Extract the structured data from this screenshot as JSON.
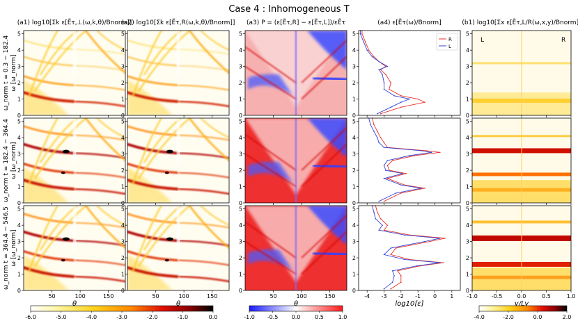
{
  "figure": {
    "title": "Case 4 : Inhomogeneous T",
    "row_labels": [
      "ω_norm t = 0.3 − 182.4",
      "ω_norm t = 182.4 − 364.4",
      "ω_norm t = 364.4 − 546.5"
    ],
    "y_axis_label": "ω [ω_norm]"
  },
  "chart_data": [
    {
      "id": "a1",
      "type": "heatmap",
      "title": "(a1) log10[Σk ε[Ẽτ,⊥(ω,k,θ)/Bnorm]]",
      "xlabel": "θ",
      "ylabel": "ω [ω_norm]",
      "xlim": [
        0,
        180
      ],
      "ylim": [
        0,
        5.2
      ],
      "xticks": [
        50,
        100,
        150
      ],
      "yticks": [
        0,
        1,
        2,
        3,
        4,
        5
      ],
      "colorbar": {
        "range": [
          -6.0,
          0.0
        ],
        "ticks": [
          "-6.0",
          "-5.0",
          "-4.0",
          "-3.0",
          "-2.0",
          "-1.0",
          "0.0"
        ],
        "cmap": "hot_r"
      }
    },
    {
      "id": "a2",
      "type": "heatmap",
      "title": "(a2) log10[Σk ε[Ẽτ,R(ω,k,θ)/Bnorm]]",
      "xlabel": "θ",
      "ylabel": "",
      "xlim": [
        0,
        180
      ],
      "ylim": [
        0,
        5.2
      ],
      "xticks": [
        50,
        100,
        150
      ],
      "yticks": [
        0,
        1,
        2,
        3,
        4,
        5
      ]
    },
    {
      "id": "a3",
      "type": "heatmap",
      "title": "(a3) P = (ε[Ẽτ,R] − ε[Ẽτ,L])/εẼτ",
      "xlabel": "θ",
      "ylabel": "",
      "xlim": [
        0,
        180
      ],
      "ylim": [
        0,
        5.2
      ],
      "xticks": [
        50,
        100,
        150
      ],
      "yticks": [
        0,
        1,
        2,
        3,
        4,
        5
      ],
      "colorbar": {
        "range": [
          -1.0,
          1.0
        ],
        "ticks": [
          "-1.0",
          "-0.5",
          "0.0",
          "0.5",
          "1.0"
        ],
        "cmap": "bwr"
      }
    },
    {
      "id": "a4",
      "type": "line",
      "title": "(a4) ε[Ẽτ(ω)/Bnorm]",
      "xlabel": "log10[ε]",
      "ylabel": "",
      "xlim": [
        -4.5,
        1.5
      ],
      "ylim": [
        0,
        5.2
      ],
      "xticks": [
        -4,
        -3,
        -2,
        -1,
        0,
        1
      ],
      "yticks": [
        0,
        1,
        2,
        3,
        4,
        5
      ],
      "legend": {
        "position": "top-right",
        "entries": [
          {
            "label": "R",
            "color": "#e8322b"
          },
          {
            "label": "L",
            "color": "#3346d6"
          }
        ]
      },
      "panels": [
        {
          "series": [
            {
              "name": "R",
              "y": [
                0.1,
                0.5,
                0.8,
                1.0,
                1.2,
                1.6,
                2.0,
                2.5,
                2.8,
                3.0,
                3.3,
                3.6,
                4.0,
                4.5,
                5.0,
                5.2
              ],
              "x": [
                -3.2,
                -2.0,
                -0.6,
                -1.0,
                -2.0,
                -2.7,
                -2.6,
                -2.9,
                -3.2,
                -2.9,
                -3.3,
                -3.6,
                -3.9,
                -4.1,
                -4.3,
                -4.3
              ]
            },
            {
              "name": "L",
              "y": [
                0.1,
                0.5,
                0.8,
                1.0,
                1.2,
                1.6,
                2.0,
                2.5,
                2.8,
                3.0,
                3.3,
                3.6,
                4.0,
                4.5,
                5.0,
                5.2
              ],
              "x": [
                -3.4,
                -2.6,
                -2.0,
                -1.5,
                -2.4,
                -3.0,
                -3.0,
                -3.1,
                -3.3,
                -2.8,
                -3.3,
                -3.7,
                -4.0,
                -4.2,
                -4.4,
                -4.4
              ]
            }
          ]
        },
        {
          "series": [
            {
              "name": "R",
              "y": [
                0.1,
                0.6,
                0.9,
                1.1,
                1.5,
                1.8,
                2.0,
                2.3,
                2.6,
                2.9,
                3.1,
                3.2,
                3.4,
                3.7,
                4.0,
                4.4,
                4.8,
                5.2
              ],
              "x": [
                -3.0,
                -2.0,
                -0.6,
                -1.8,
                -2.8,
                -1.7,
                -2.7,
                -2.8,
                -2.5,
                -1.2,
                0.3,
                -0.5,
                -2.8,
                -3.0,
                -3.2,
                -3.4,
                -3.6,
                -3.7
              ]
            },
            {
              "name": "L",
              "y": [
                0.1,
                0.6,
                0.9,
                1.1,
                1.5,
                1.8,
                2.0,
                2.3,
                2.6,
                2.9,
                3.1,
                3.2,
                3.4,
                3.7,
                4.0,
                4.4,
                4.8,
                5.2
              ],
              "x": [
                -3.3,
                -2.3,
                -0.8,
                -2.0,
                -3.0,
                -1.9,
                -2.9,
                -3.0,
                -2.8,
                -1.5,
                -0.2,
                -0.8,
                -3.0,
                -3.3,
                -3.4,
                -3.6,
                -3.8,
                -3.9
              ]
            }
          ]
        },
        {
          "series": [
            {
              "name": "R",
              "y": [
                0.1,
                0.5,
                0.9,
                1.2,
                1.5,
                1.7,
                1.9,
                2.2,
                2.6,
                3.0,
                3.2,
                3.4,
                3.7,
                4.0,
                4.4,
                4.8,
                5.2
              ],
              "x": [
                -2.6,
                -2.0,
                -2.0,
                -2.2,
                -0.9,
                0.5,
                -1.5,
                -2.6,
                -2.3,
                -0.3,
                0.6,
                -1.5,
                -3.0,
                -2.8,
                -3.2,
                -3.4,
                -3.5
              ]
            },
            {
              "name": "L",
              "y": [
                0.1,
                0.5,
                0.9,
                1.2,
                1.5,
                1.7,
                1.9,
                2.2,
                2.6,
                3.0,
                3.2,
                3.4,
                3.7,
                4.0,
                4.4,
                4.8,
                5.2
              ],
              "x": [
                -3.0,
                -2.5,
                -2.4,
                -2.5,
                -1.1,
                0.3,
                -1.8,
                -3.0,
                -2.6,
                -0.6,
                0.3,
                -1.8,
                -3.3,
                -3.1,
                -3.5,
                -3.6,
                -3.7
              ]
            }
          ]
        }
      ]
    },
    {
      "id": "b1",
      "type": "heatmap",
      "title": "(b1) log10[Σx ε[Ẽτ,L/R(ω,x,y)/Bnorm]]",
      "xlabel": "y/Ly",
      "ylabel": "",
      "xlim": [
        -1.0,
        1.0
      ],
      "ylim": [
        0,
        5.2
      ],
      "xticks": [
        -1.0,
        -0.5,
        0.0,
        0.5,
        1.0
      ],
      "yticks": [
        0,
        1,
        2,
        3,
        4,
        5
      ],
      "annotations": [
        "L",
        "R"
      ],
      "colorbar": {
        "range": [
          -4.0,
          2.0
        ],
        "ticks": [
          "-4.0",
          "-2.0",
          "0.0",
          "2.0"
        ],
        "cmap": "hot_r"
      }
    }
  ]
}
